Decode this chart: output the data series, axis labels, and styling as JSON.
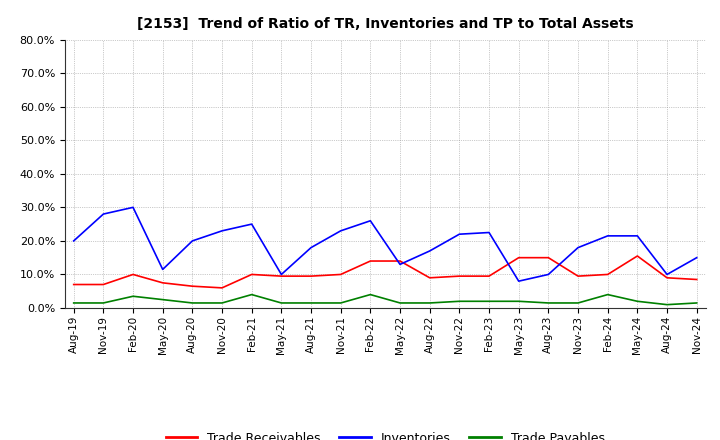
{
  "title": "[2153]  Trend of Ratio of TR, Inventories and TP to Total Assets",
  "x_labels": [
    "Aug-19",
    "Nov-19",
    "Feb-20",
    "May-20",
    "Aug-20",
    "Nov-20",
    "Feb-21",
    "May-21",
    "Aug-21",
    "Nov-21",
    "Feb-22",
    "May-22",
    "Aug-22",
    "Nov-22",
    "Feb-23",
    "May-23",
    "Aug-23",
    "Nov-23",
    "Feb-24",
    "May-24",
    "Aug-24",
    "Nov-24"
  ],
  "trade_receivables": [
    7.0,
    7.0,
    10.0,
    7.5,
    6.5,
    6.0,
    10.0,
    9.5,
    9.5,
    10.0,
    14.0,
    14.0,
    9.0,
    9.5,
    9.5,
    15.0,
    15.0,
    9.5,
    10.0,
    15.5,
    9.0,
    8.5
  ],
  "inventories": [
    20.0,
    28.0,
    30.0,
    11.5,
    20.0,
    23.0,
    25.0,
    10.0,
    18.0,
    23.0,
    26.0,
    13.0,
    17.0,
    22.0,
    22.5,
    8.0,
    10.0,
    18.0,
    21.5,
    21.5,
    10.0,
    15.0
  ],
  "trade_payables": [
    1.5,
    1.5,
    3.5,
    2.5,
    1.5,
    1.5,
    4.0,
    1.5,
    1.5,
    1.5,
    4.0,
    1.5,
    1.5,
    2.0,
    2.0,
    2.0,
    1.5,
    1.5,
    4.0,
    2.0,
    1.0,
    1.5
  ],
  "tr_color": "#ff0000",
  "inv_color": "#0000ff",
  "tp_color": "#008000",
  "ylim": [
    0,
    80
  ],
  "yticks": [
    0,
    10,
    20,
    30,
    40,
    50,
    60,
    70,
    80
  ],
  "legend_labels": [
    "Trade Receivables",
    "Inventories",
    "Trade Payables"
  ],
  "background_color": "#ffffff",
  "grid_color": "#999999"
}
